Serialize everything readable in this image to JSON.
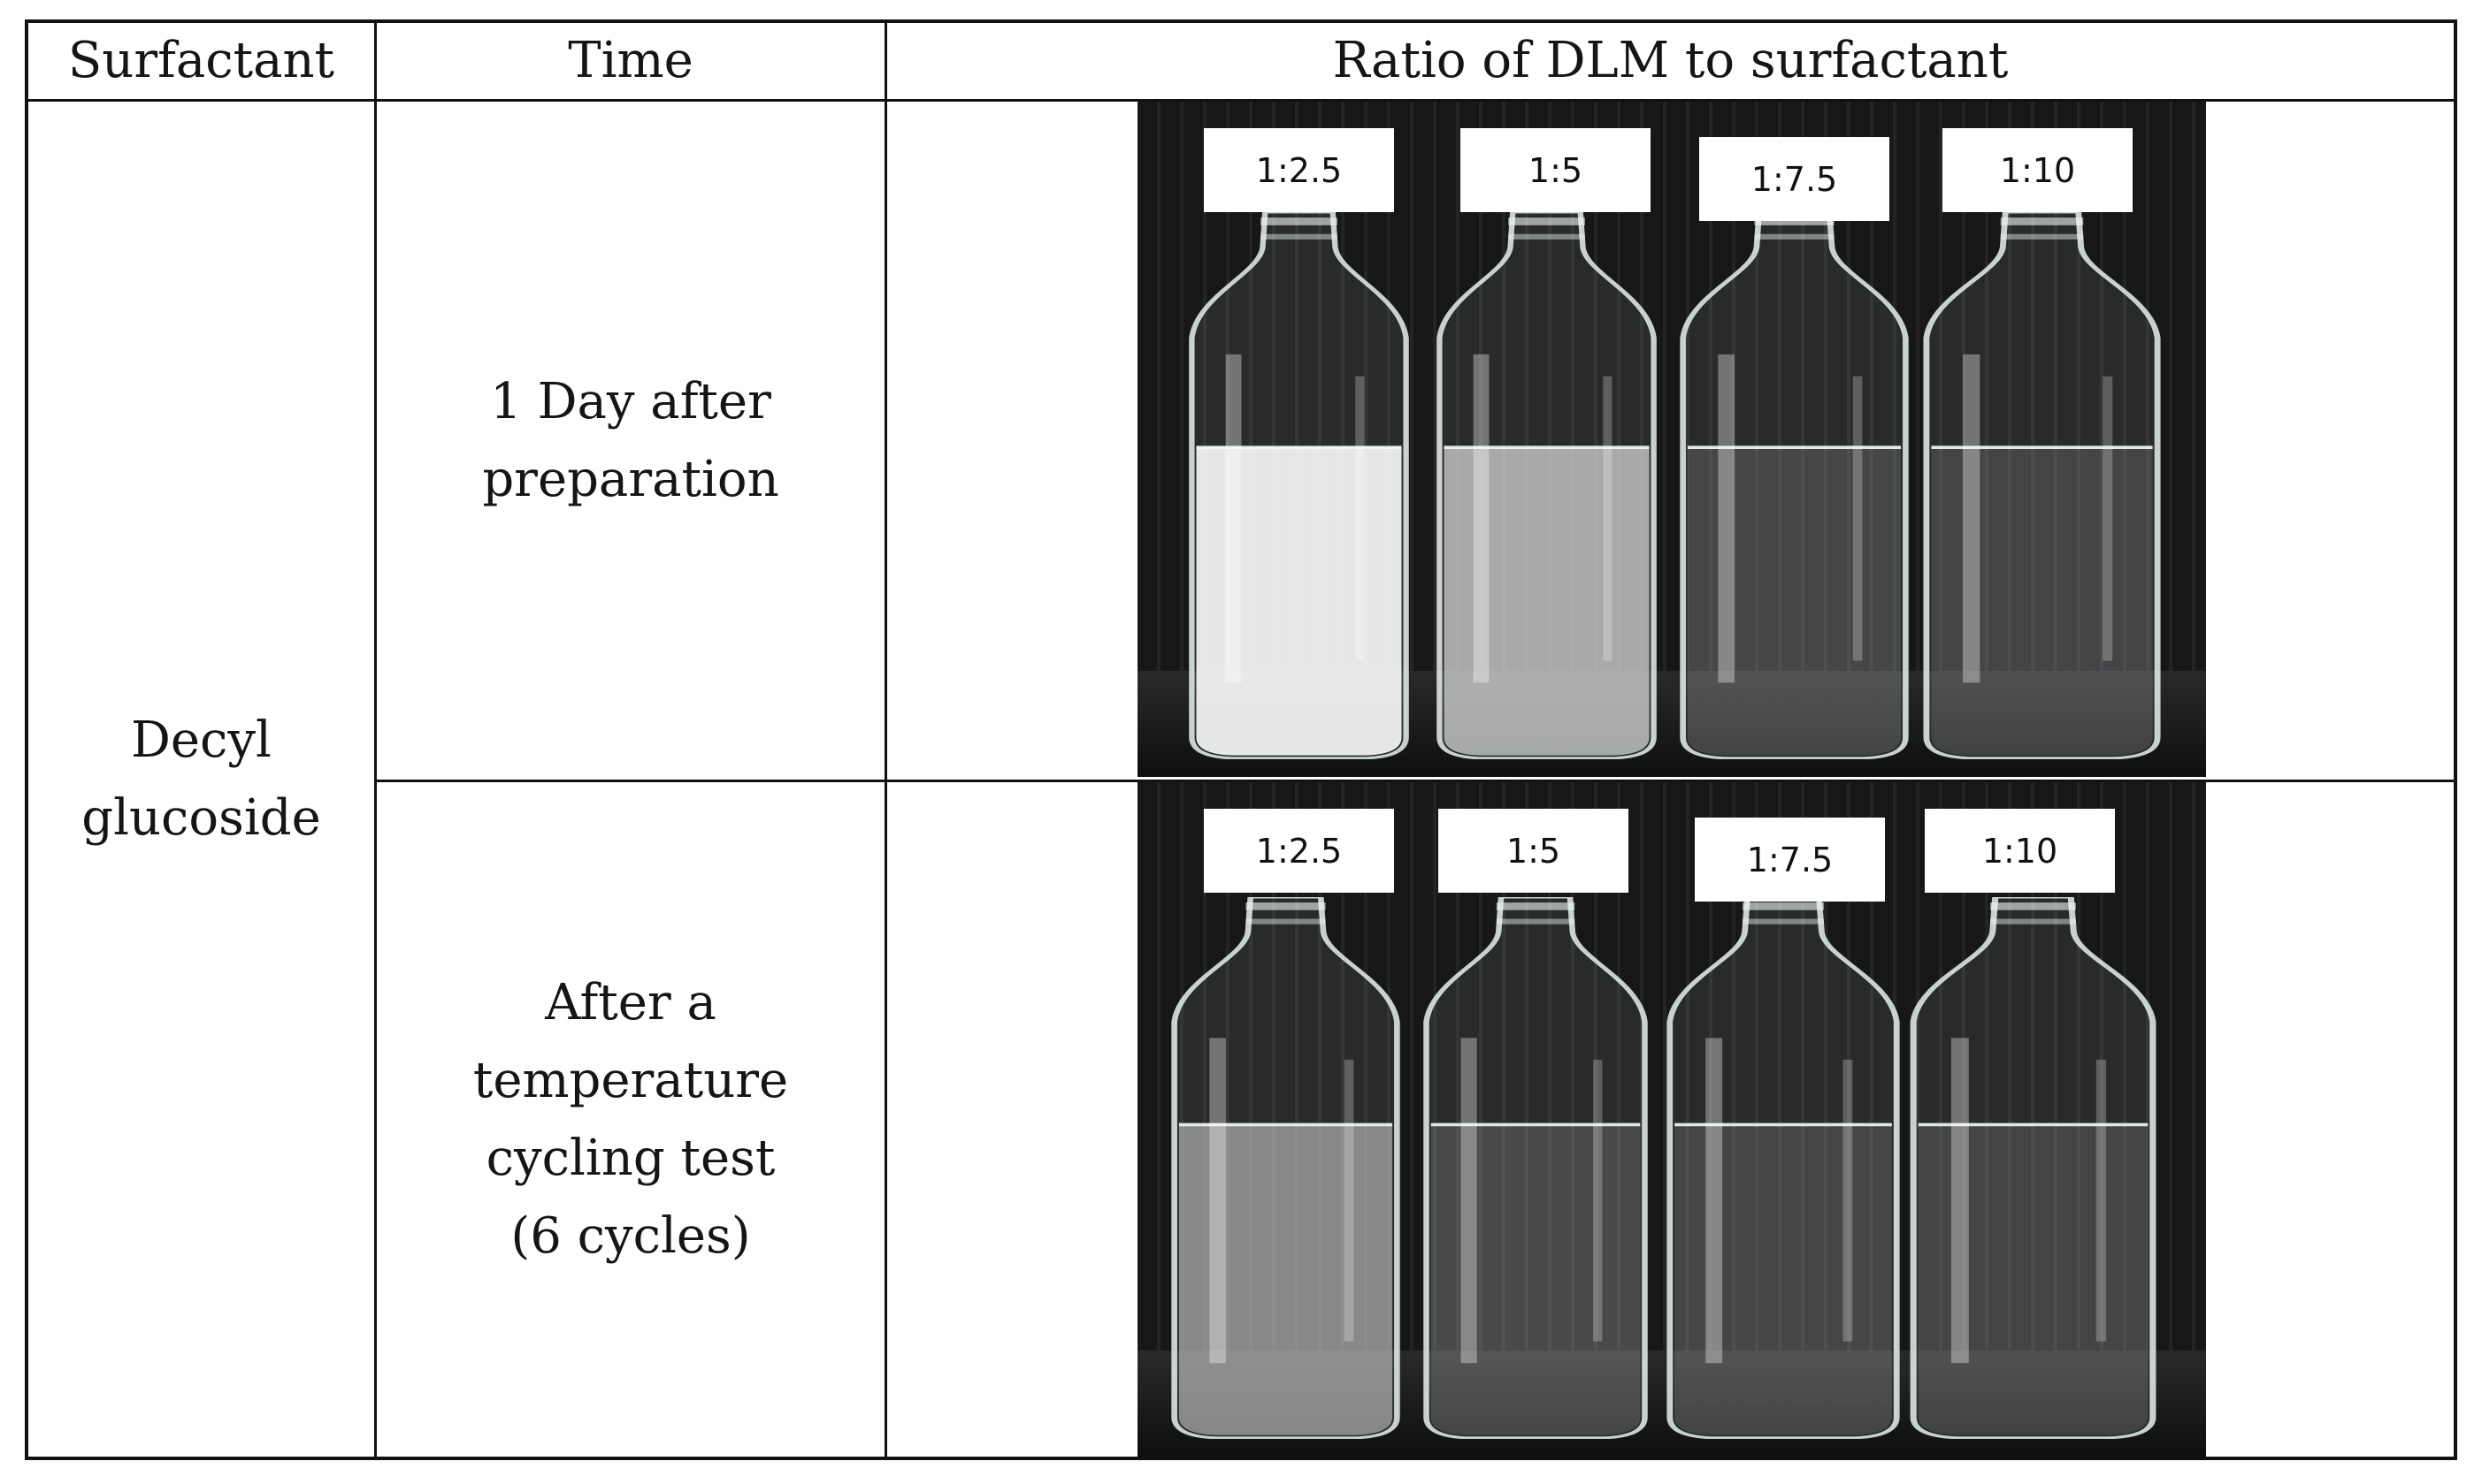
{
  "table": {
    "headers": {
      "surfactant": "Surfactant",
      "time": "Time",
      "ratio": "Ratio of DLM to surfactant"
    },
    "surfactant_name": [
      "Decyl",
      "glucoside"
    ],
    "rows": [
      {
        "time_lines": [
          "1 Day after",
          "preparation"
        ],
        "labels": [
          "1:2.5",
          "1:5",
          "1:7.5",
          "1:10"
        ],
        "turbidity": [
          0.95,
          0.7,
          0.12,
          0.1
        ]
      },
      {
        "time_lines": [
          "After a",
          "temperature",
          "cycling test",
          "(6 cycles)"
        ],
        "labels": [
          "1:2.5",
          "1:5",
          "1:7.5",
          "1:10"
        ],
        "turbidity": [
          0.55,
          0.15,
          0.12,
          0.1
        ]
      }
    ]
  },
  "colors": {
    "border": "#111111",
    "text": "#151515",
    "backdrop": "#1c1c1c"
  }
}
